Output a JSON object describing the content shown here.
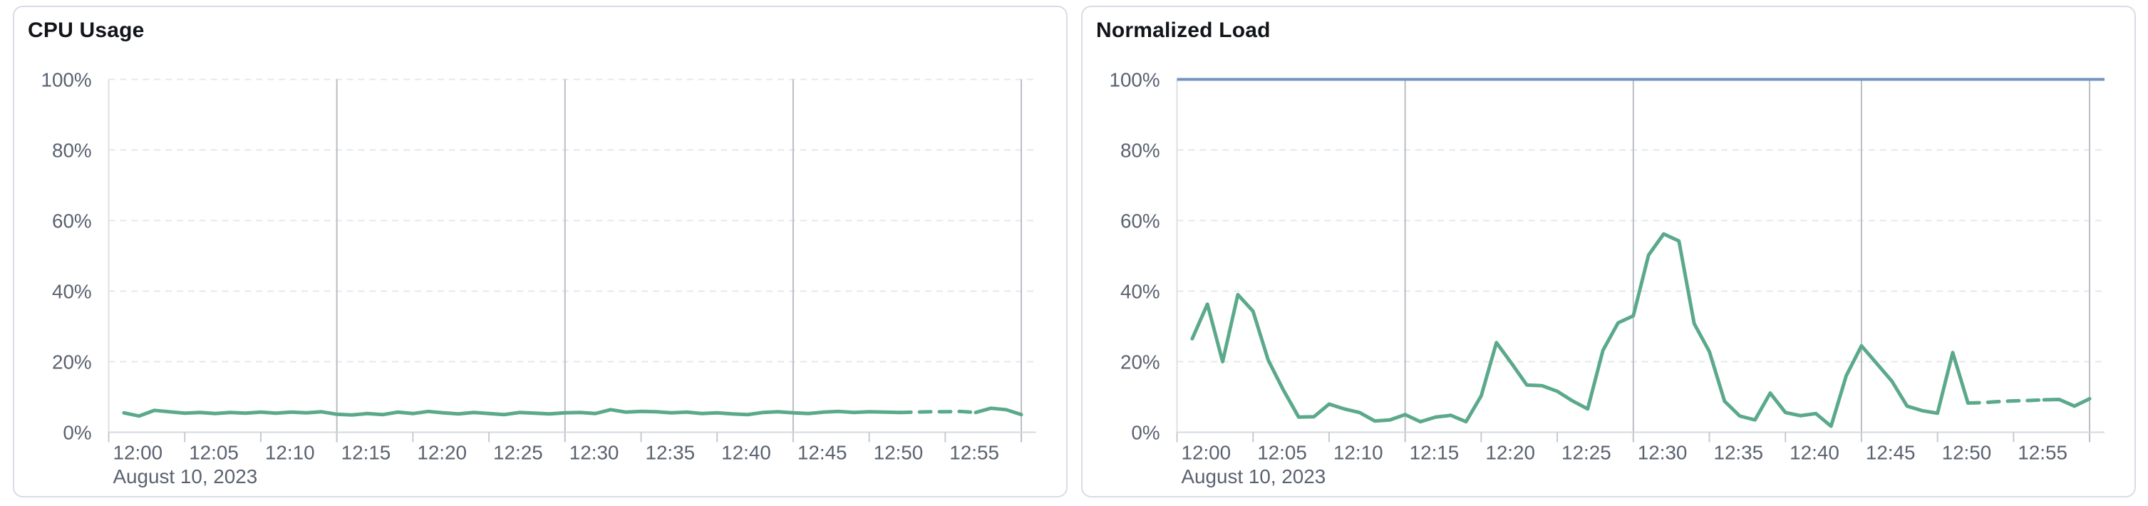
{
  "page": {
    "background": "#ffffff"
  },
  "colors": {
    "series_green": "#5ba98b",
    "reference_blue": "#7393bc",
    "grid_dashed": "#e4e7ee",
    "grid_vertical": "#b9bdc4",
    "plot_left_boundary": "#dde0e6",
    "axis_line": "#d6d9de",
    "tick_mark": "#c6cad1",
    "tick_text": "#5a6270",
    "title_text": "#111418",
    "card_border": "#d8dce4",
    "card_background": "#ffffff"
  },
  "chart_data": [
    {
      "type": "line",
      "title": "CPU Usage",
      "xlabel_date": "August 10, 2023",
      "x_start_time": "12:00",
      "x_range_minutes": [
        0,
        60
      ],
      "x_tick_interval_minutes": 5,
      "x_tick_labels": [
        "12:00",
        "12:05",
        "12:10",
        "12:15",
        "12:20",
        "12:25",
        "12:30",
        "12:35",
        "12:40",
        "12:45",
        "12:50",
        "12:55"
      ],
      "ylim": [
        0,
        100
      ],
      "y_tick_values": [
        0,
        20,
        40,
        60,
        80,
        100
      ],
      "y_tick_labels": [
        "0%",
        "20%",
        "40%",
        "60%",
        "80%",
        "100%"
      ],
      "grid": "horizontal-dashed",
      "v_gridline_minutes": [
        15,
        30,
        45
      ],
      "end_line_minute": 60,
      "legend": "none",
      "reference_lines": [],
      "series": [
        {
          "name": "CPU Usage",
          "color": "#5ba98b",
          "start_minute": 1,
          "interval_minutes": 1,
          "dashed_segment_minutes": [
            52,
            57
          ],
          "values": [
            5.5,
            4.6,
            6.2,
            5.8,
            5.4,
            5.6,
            5.3,
            5.6,
            5.4,
            5.7,
            5.4,
            5.7,
            5.5,
            5.8,
            5.1,
            4.9,
            5.3,
            5.0,
            5.7,
            5.3,
            5.9,
            5.5,
            5.2,
            5.6,
            5.3,
            5.0,
            5.6,
            5.4,
            5.2,
            5.5,
            5.6,
            5.3,
            6.4,
            5.7,
            5.9,
            5.8,
            5.5,
            5.7,
            5.3,
            5.5,
            5.2,
            5.0,
            5.6,
            5.8,
            5.5,
            5.3,
            5.7,
            5.9,
            5.6,
            5.8,
            5.7,
            5.6,
            5.7,
            5.8,
            5.8,
            5.9,
            5.6,
            6.8,
            6.4,
            5.0
          ]
        }
      ]
    },
    {
      "type": "line",
      "title": "Normalized Load",
      "xlabel_date": "August 10, 2023",
      "x_start_time": "12:00",
      "x_range_minutes": [
        0,
        60
      ],
      "x_tick_interval_minutes": 5,
      "x_tick_labels": [
        "12:00",
        "12:05",
        "12:10",
        "12:15",
        "12:20",
        "12:25",
        "12:30",
        "12:35",
        "12:40",
        "12:45",
        "12:50",
        "12:55"
      ],
      "ylim": [
        0,
        100
      ],
      "y_tick_values": [
        0,
        20,
        40,
        60,
        80,
        100
      ],
      "y_tick_labels": [
        "0%",
        "20%",
        "40%",
        "60%",
        "80%",
        "100%"
      ],
      "grid": "horizontal-dashed",
      "v_gridline_minutes": [
        15,
        30,
        45
      ],
      "end_line_minute": 60,
      "legend": "none",
      "reference_lines": [
        {
          "value": 100,
          "color": "#7393bc"
        }
      ],
      "series": [
        {
          "name": "Normalized Load",
          "color": "#5ba98b",
          "start_minute": 1,
          "interval_minutes": 1,
          "dashed_segment_minutes": [
            52,
            57
          ],
          "values": [
            26.5,
            36.3,
            20.0,
            39.0,
            34.3,
            20.4,
            11.9,
            4.3,
            4.4,
            8.0,
            6.6,
            5.6,
            3.2,
            3.5,
            5.0,
            3.0,
            4.3,
            4.8,
            3.0,
            10.3,
            25.4,
            19.5,
            13.4,
            13.2,
            11.6,
            8.9,
            6.6,
            23.2,
            31.0,
            33.0,
            50.2,
            56.2,
            54.2,
            30.8,
            22.9,
            8.8,
            4.6,
            3.5,
            11.1,
            5.6,
            4.7,
            5.3,
            1.7,
            16.0,
            24.5,
            19.5,
            14.5,
            7.4,
            6.1,
            5.4,
            22.6,
            8.3,
            8.4,
            8.7,
            8.9,
            9.0,
            9.2,
            9.3,
            7.4,
            9.5
          ]
        }
      ]
    }
  ]
}
